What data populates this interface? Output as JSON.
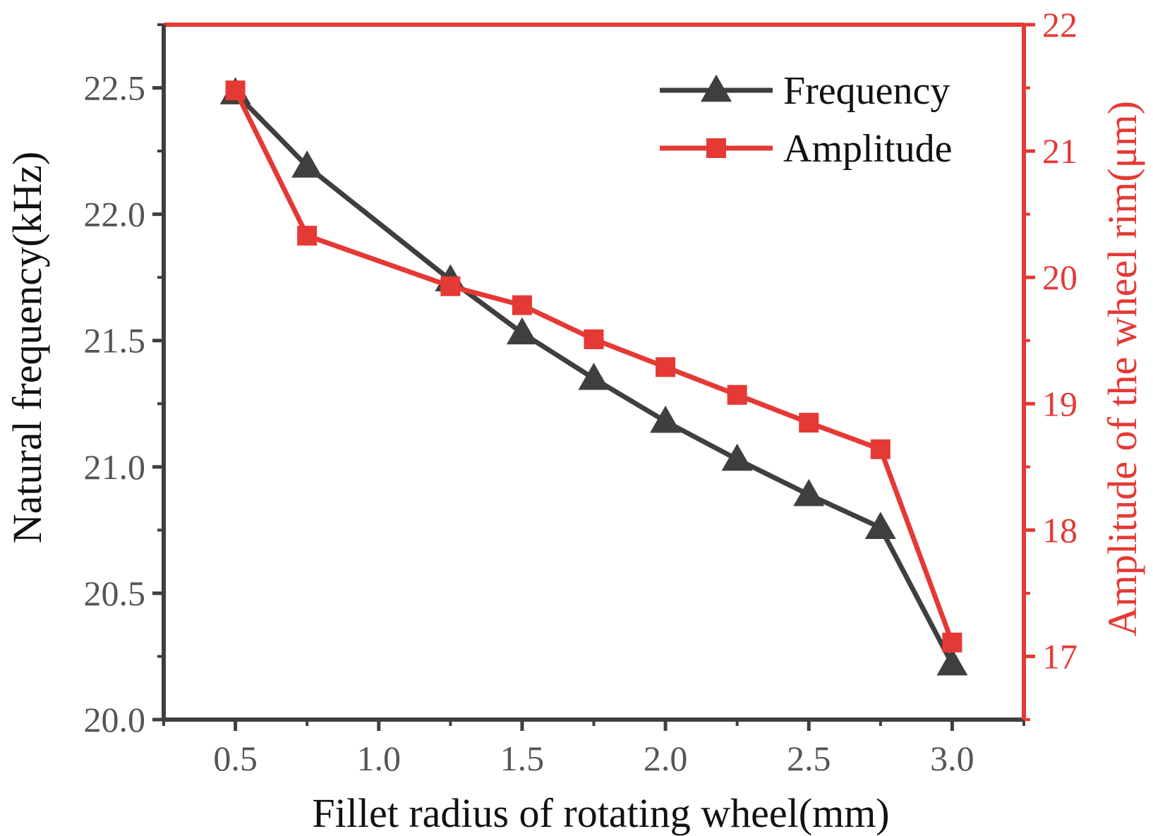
{
  "chart_data": {
    "type": "line",
    "title": "",
    "xlabel": "Fillet radius of rotating wheel(mm)",
    "ylabel": "Natural frequency(kHz)",
    "y2label": "Amplitude of the wheel rim(μm)",
    "xlim": [
      0.25,
      3.25
    ],
    "ylim": [
      20.0,
      22.75
    ],
    "y2lim": [
      16.5,
      22.0
    ],
    "x_ticks": [
      "0.5",
      "1.0",
      "1.5",
      "2.0",
      "2.5",
      "3.0"
    ],
    "y_ticks": [
      "20.0",
      "20.5",
      "21.0",
      "21.5",
      "22.0",
      "22.5"
    ],
    "y2_ticks": [
      "17",
      "18",
      "19",
      "20",
      "21",
      "22"
    ],
    "legend_position": "top-right",
    "series": [
      {
        "name": "Frequency",
        "axis": "left",
        "marker": "triangle",
        "color": "#3f3f3f",
        "x": [
          0.5,
          0.75,
          1.25,
          1.5,
          1.75,
          2.0,
          2.25,
          2.5,
          2.75,
          3.0
        ],
        "y": [
          22.48,
          22.19,
          21.74,
          21.53,
          21.35,
          21.18,
          21.03,
          20.89,
          20.76,
          20.22
        ]
      },
      {
        "name": "Amplitude",
        "axis": "right",
        "marker": "square",
        "color": "#e53935",
        "x": [
          0.5,
          0.75,
          1.25,
          1.5,
          1.75,
          2.0,
          2.25,
          2.5,
          2.75,
          3.0
        ],
        "y": [
          21.48,
          20.33,
          19.93,
          19.78,
          19.51,
          19.29,
          19.07,
          18.85,
          18.64,
          17.11
        ]
      }
    ]
  }
}
